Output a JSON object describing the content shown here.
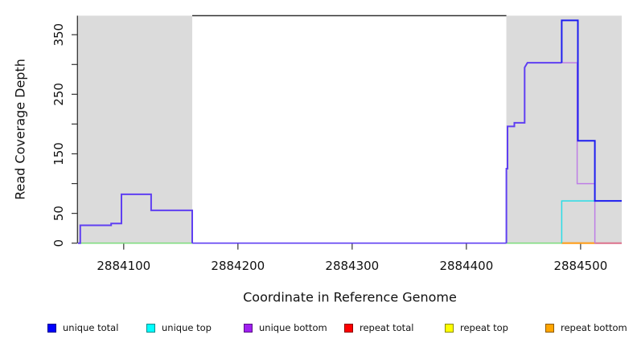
{
  "chart_data": {
    "type": "line",
    "subtype": "step-coverage",
    "title": "",
    "xlabel": "Coordinate in Reference Genome",
    "ylabel": "Read Coverage Depth",
    "xlim": [
      2884060,
      2884536
    ],
    "ylim": [
      0,
      382
    ],
    "grid": false,
    "x_ticks": [
      {
        "v": 2884100,
        "label": "2884100"
      },
      {
        "v": 2884200,
        "label": "2884200"
      },
      {
        "v": 2884300,
        "label": "2884300"
      },
      {
        "v": 2884400,
        "label": "2884400"
      },
      {
        "v": 2884500,
        "label": "2884500"
      }
    ],
    "y_ticks": [
      {
        "v": 0,
        "label": "0"
      },
      {
        "v": 50,
        "label": "50"
      },
      {
        "v": 100,
        "label": ""
      },
      {
        "v": 150,
        "label": "150"
      },
      {
        "v": 200,
        "label": ""
      },
      {
        "v": 250,
        "label": "250"
      },
      {
        "v": 300,
        "label": ""
      },
      {
        "v": 350,
        "label": "350"
      }
    ],
    "highlight_regions": [
      {
        "x0": 2884060,
        "x1": 2884160,
        "color": "#DBDBDB"
      },
      {
        "x0": 2884435,
        "x1": 2884536,
        "color": "#DBDBDB"
      }
    ],
    "series": [
      {
        "name": "unique total",
        "color": "#0000FF",
        "steps": [
          [
            2884060,
            0
          ],
          [
            2884062,
            30
          ],
          [
            2884089,
            33
          ],
          [
            2884098,
            82
          ],
          [
            2884124,
            55
          ],
          [
            2884160,
            0
          ],
          [
            2884435,
            196
          ],
          [
            2884442,
            202
          ],
          [
            2884451,
            303
          ],
          [
            2884483,
            374
          ],
          [
            2884497,
            172
          ],
          [
            2884512,
            71
          ],
          [
            2884536,
            71
          ]
        ]
      },
      {
        "name": "unique top",
        "color": "#00FFFF",
        "steps": [
          [
            2884060,
            0
          ],
          [
            2884483,
            71
          ],
          [
            2884536,
            71
          ]
        ]
      },
      {
        "name": "unique bottom",
        "color": "#A020F0",
        "steps": [
          [
            2884060,
            0
          ],
          [
            2884062,
            30
          ],
          [
            2884089,
            33
          ],
          [
            2884098,
            82
          ],
          [
            2884124,
            55
          ],
          [
            2884160,
            0
          ],
          [
            2884435,
            196
          ],
          [
            2884442,
            202
          ],
          [
            2884451,
            303
          ],
          [
            2884497,
            100
          ],
          [
            2884512,
            0
          ],
          [
            2884536,
            0
          ]
        ]
      },
      {
        "name": "repeat total",
        "color": "#FF0000",
        "steps": [
          [
            2884060,
            0
          ],
          [
            2884536,
            0
          ]
        ]
      },
      {
        "name": "repeat top",
        "color": "#FFFF00",
        "steps": [
          [
            2884060,
            0
          ],
          [
            2884536,
            0
          ]
        ]
      },
      {
        "name": "repeat bottom",
        "color": "#FFA500",
        "steps": [
          [
            2884060,
            0
          ],
          [
            2884536,
            0
          ]
        ]
      }
    ],
    "render_layers": [
      {
        "name": "baseline-left-green",
        "color": "#82DC82",
        "width": 1.7,
        "pts": [
          [
            2884060,
            0
          ],
          [
            2884160,
            0
          ]
        ]
      },
      {
        "name": "baseline-mid-violet",
        "color": "#5F3FF2",
        "width": 1.7,
        "pts": [
          [
            2884160,
            0
          ],
          [
            2884435,
            0
          ]
        ]
      },
      {
        "name": "baseline-right-green",
        "color": "#82DC82",
        "width": 1.7,
        "pts": [
          [
            2884435,
            0
          ],
          [
            2884483.5,
            0
          ]
        ]
      },
      {
        "name": "baseline-crimson",
        "color": "#DC708C",
        "width": 2,
        "pts": [
          [
            2884512.5,
            0
          ],
          [
            2884536,
            0
          ]
        ]
      },
      {
        "name": "baseline-orange",
        "color": "#FF9E1B",
        "width": 2.2,
        "pts": [
          [
            2884483.5,
            0
          ],
          [
            2884512.5,
            0
          ]
        ]
      },
      {
        "name": "unique-top-cyan",
        "color": "#2BDCE6",
        "width": 1.5,
        "pts": [
          [
            2884483.5,
            0
          ],
          [
            2884483.5,
            71
          ],
          [
            2884512.5,
            71
          ]
        ]
      },
      {
        "name": "unique-bottom-lavender",
        "color": "#BE7EE6",
        "width": 1.5,
        "pts": [
          [
            2884483.5,
            303
          ],
          [
            2884497,
            303
          ],
          [
            2884497,
            100
          ],
          [
            2884512.5,
            100
          ],
          [
            2884512.5,
            0
          ]
        ]
      },
      {
        "name": "unique-violet-left-hump",
        "color": "#5F3FF2",
        "width": 2,
        "pts": [
          [
            2884060,
            0
          ],
          [
            2884062,
            0
          ],
          [
            2884062,
            30
          ],
          [
            2884089,
            30
          ],
          [
            2884089,
            33
          ],
          [
            2884098,
            33
          ],
          [
            2884098,
            82
          ],
          [
            2884124,
            82
          ],
          [
            2884124,
            55
          ],
          [
            2884160,
            55
          ],
          [
            2884160,
            0
          ]
        ]
      },
      {
        "name": "unique-violet-right-rise",
        "color": "#5F3FF2",
        "width": 2,
        "pts": [
          [
            2884435,
            0
          ],
          [
            2884435,
            125
          ],
          [
            2884436,
            125
          ],
          [
            2884436,
            196
          ],
          [
            2884442,
            196
          ],
          [
            2884442,
            202
          ],
          [
            2884451,
            202
          ],
          [
            2884451,
            295
          ],
          [
            2884453.5,
            303
          ],
          [
            2884483.5,
            303
          ]
        ]
      },
      {
        "name": "unique-total-blue-peak",
        "color": "#1E1EF0",
        "width": 2,
        "pts": [
          [
            2884483.5,
            303
          ],
          [
            2884483.5,
            374
          ],
          [
            2884497.6,
            374
          ],
          [
            2884497.6,
            172
          ],
          [
            2884512.5,
            172
          ],
          [
            2884512.5,
            71
          ],
          [
            2884536,
            71
          ]
        ]
      }
    ]
  },
  "legend": {
    "items": [
      {
        "label": "unique total",
        "color": "#0000FF"
      },
      {
        "label": "unique top",
        "color": "#00FFFF"
      },
      {
        "label": "unique bottom",
        "color": "#A020F0"
      },
      {
        "label": "repeat total",
        "color": "#FF0000"
      },
      {
        "label": "repeat top",
        "color": "#FFFF00"
      },
      {
        "label": "repeat bottom",
        "color": "#FFA500"
      }
    ]
  }
}
